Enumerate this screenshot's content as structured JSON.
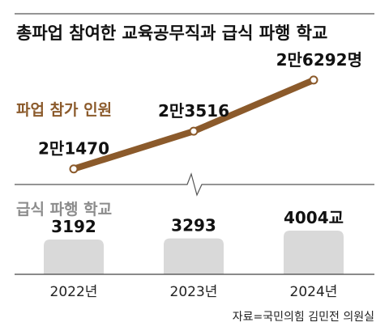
{
  "title": "총파업 참여한 교육공무직과 급식 파행 학교",
  "source": "자료=국민의힘 김민전 의원실",
  "colors": {
    "strike_line": "#8B5A2B",
    "strike_label": "#8B5A2B",
    "school_bar": "#D9D9D9",
    "school_label": "#8C8C8C",
    "rule": "#555555"
  },
  "chart_data": [
    {
      "type": "line",
      "name": "파업 참가 인원",
      "categories": [
        "2022년",
        "2023년",
        "2024년"
      ],
      "values": [
        21470,
        23516,
        26292
      ],
      "data_labels": [
        "2만1470",
        "2만3516",
        "2만6292명"
      ],
      "ylim": [
        19000,
        28000
      ]
    },
    {
      "type": "bar",
      "name": "급식 파행 학교",
      "categories": [
        "2022년",
        "2023년",
        "2024년"
      ],
      "values": [
        3192,
        3293,
        4004
      ],
      "data_labels": [
        "3192",
        "3293",
        "4004교"
      ],
      "ylim": [
        0,
        4004
      ]
    }
  ]
}
